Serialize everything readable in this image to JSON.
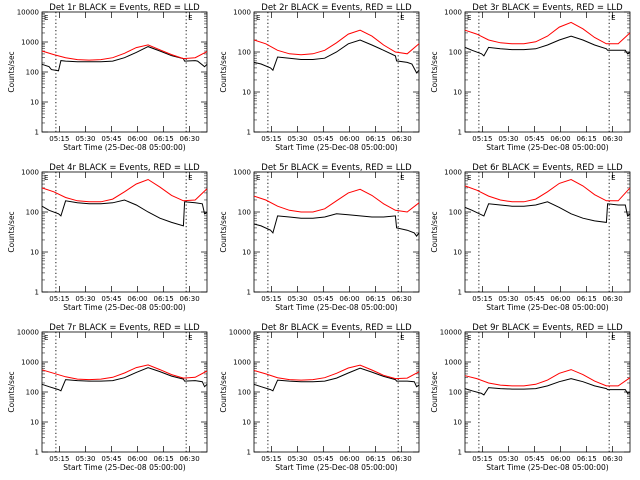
{
  "page": {
    "ylabel": "Counts/sec",
    "xlabel": "Start Time (25-Dec-08 05:00:00)",
    "xticks": [
      "05:15",
      "05:30",
      "05:45",
      "06:00",
      "06:15",
      "06:30"
    ],
    "yticks": [
      "1",
      "10",
      "100",
      "1000",
      "10000"
    ],
    "corner_mark": "E",
    "colors": {
      "events": "#000000",
      "lld": "#ff0000",
      "axes": "#000000"
    }
  },
  "chart_data": [
    {
      "type": "line",
      "title": "Det 1r BLACK = Events, RED = LLD",
      "xlabel": "Start Time (25-Dec-08 05:00:00)",
      "ylabel": "Counts/sec",
      "x_range_min": [
        5,
        40
      ],
      "ylim": [
        1,
        10000
      ],
      "yscale": "log",
      "markers_min": [
        13,
        65
      ],
      "series": [
        {
          "name": "Events",
          "color": "black",
          "x": [
            5,
            8,
            9,
            12,
            13,
            15,
            20,
            25,
            30,
            35,
            40,
            45,
            50,
            55,
            60,
            65,
            65.5,
            70,
            71,
            74,
            75
          ],
          "y": [
            180,
            150,
            120,
            110,
            240,
            230,
            220,
            220,
            220,
            230,
            300,
            450,
            700,
            500,
            350,
            280,
            230,
            240,
            230,
            150,
            180
          ]
        },
        {
          "name": "LLD",
          "color": "red",
          "x": [
            5,
            10,
            15,
            20,
            25,
            30,
            35,
            40,
            45,
            50,
            55,
            60,
            65,
            70,
            75
          ],
          "y": [
            500,
            380,
            300,
            260,
            250,
            260,
            300,
            420,
            650,
            800,
            550,
            380,
            280,
            300,
            480
          ]
        }
      ]
    },
    {
      "type": "line",
      "title": "Det 2r BLACK = Events, RED = LLD",
      "xlabel": "Start Time (25-Dec-08 05:00:00)",
      "ylabel": "Counts/sec",
      "ylim": [
        1,
        1000
      ],
      "yscale": "log",
      "markers_min": [
        13,
        65
      ],
      "series": [
        {
          "name": "Events",
          "color": "black",
          "x": [
            5,
            8,
            12,
            13,
            15,
            20,
            25,
            30,
            35,
            40,
            45,
            50,
            55,
            60,
            65,
            65.5,
            70,
            72,
            74,
            75
          ],
          "y": [
            55,
            50,
            40,
            35,
            75,
            70,
            65,
            65,
            70,
            100,
            160,
            200,
            150,
            110,
            80,
            60,
            55,
            50,
            30,
            35
          ]
        },
        {
          "name": "LLD",
          "color": "red",
          "x": [
            5,
            10,
            15,
            20,
            25,
            30,
            35,
            40,
            45,
            50,
            55,
            60,
            65,
            70,
            75
          ],
          "y": [
            200,
            160,
            110,
            90,
            85,
            90,
            110,
            170,
            280,
            350,
            250,
            150,
            100,
            90,
            160
          ]
        }
      ]
    },
    {
      "type": "line",
      "title": "Det 3r BLACK = Events, RED = LLD",
      "xlabel": "Start Time (25-Dec-08 05:00:00)",
      "ylabel": "Counts/sec",
      "ylim": [
        1,
        1000
      ],
      "yscale": "log",
      "markers_min": [
        13,
        65
      ],
      "series": [
        {
          "name": "Events",
          "color": "black",
          "x": [
            5,
            8,
            12,
            13,
            15,
            20,
            25,
            30,
            35,
            40,
            45,
            50,
            55,
            60,
            65,
            65.5,
            70,
            73,
            74,
            75
          ],
          "y": [
            130,
            110,
            90,
            80,
            130,
            120,
            115,
            115,
            120,
            150,
            200,
            250,
            200,
            150,
            120,
            110,
            110,
            110,
            90,
            100
          ]
        },
        {
          "name": "LLD",
          "color": "red",
          "x": [
            5,
            10,
            15,
            20,
            25,
            30,
            35,
            40,
            45,
            50,
            55,
            60,
            65,
            70,
            75
          ],
          "y": [
            350,
            280,
            200,
            170,
            160,
            160,
            180,
            250,
            420,
            550,
            380,
            230,
            160,
            160,
            300
          ]
        }
      ]
    },
    {
      "type": "line",
      "title": "Det 4r BLACK = Events, RED = LLD",
      "xlabel": "Start Time (25-Dec-08 05:00:00)",
      "ylabel": "Counts/sec",
      "ylim": [
        1,
        1000
      ],
      "yscale": "log",
      "markers_min": [
        13,
        65
      ],
      "series": [
        {
          "name": "Events",
          "color": "black",
          "x": [
            5,
            8,
            12,
            13,
            15,
            20,
            25,
            30,
            35,
            40,
            45,
            50,
            55,
            60,
            65,
            65.5,
            70,
            73,
            74,
            75
          ],
          "y": [
            140,
            110,
            90,
            80,
            190,
            170,
            160,
            160,
            170,
            200,
            150,
            100,
            70,
            55,
            45,
            180,
            170,
            160,
            90,
            100
          ]
        },
        {
          "name": "LLD",
          "color": "red",
          "x": [
            5,
            10,
            15,
            20,
            25,
            30,
            35,
            40,
            45,
            50,
            55,
            60,
            65,
            70,
            75
          ],
          "y": [
            400,
            320,
            230,
            190,
            180,
            180,
            210,
            320,
            500,
            650,
            420,
            260,
            190,
            200,
            380
          ]
        }
      ]
    },
    {
      "type": "line",
      "title": "Det 5r BLACK = Events, RED = LLD",
      "xlabel": "Start Time (25-Dec-08 05:00:00)",
      "ylabel": "Counts/sec",
      "ylim": [
        1,
        1000
      ],
      "yscale": "log",
      "markers_min": [
        13,
        65
      ],
      "series": [
        {
          "name": "Events",
          "color": "black",
          "x": [
            5,
            8,
            12,
            13,
            15,
            20,
            25,
            30,
            35,
            40,
            45,
            50,
            55,
            60,
            65,
            65.5,
            70,
            73,
            74,
            75
          ],
          "y": [
            50,
            45,
            35,
            30,
            80,
            75,
            70,
            70,
            75,
            90,
            85,
            80,
            75,
            75,
            80,
            40,
            35,
            30,
            25,
            30
          ]
        },
        {
          "name": "LLD",
          "color": "red",
          "x": [
            5,
            10,
            15,
            20,
            25,
            30,
            35,
            40,
            45,
            50,
            55,
            60,
            65,
            70,
            75
          ],
          "y": [
            250,
            200,
            140,
            110,
            100,
            100,
            120,
            190,
            300,
            370,
            260,
            160,
            110,
            100,
            170
          ]
        }
      ]
    },
    {
      "type": "line",
      "title": "Det 6r BLACK = Events, RED = LLD",
      "xlabel": "Start Time (25-Dec-08 05:00:00)",
      "ylabel": "Counts/sec",
      "ylim": [
        1,
        1000
      ],
      "yscale": "log",
      "markers_min": [
        13,
        65
      ],
      "series": [
        {
          "name": "Events",
          "color": "black",
          "x": [
            5,
            8,
            12,
            13,
            15,
            20,
            25,
            30,
            35,
            40,
            45,
            50,
            55,
            60,
            65,
            65.5,
            70,
            73,
            74,
            75
          ],
          "y": [
            130,
            110,
            85,
            80,
            160,
            150,
            140,
            140,
            150,
            180,
            130,
            90,
            70,
            60,
            55,
            160,
            150,
            150,
            80,
            90
          ]
        },
        {
          "name": "LLD",
          "color": "red",
          "x": [
            5,
            10,
            15,
            20,
            25,
            30,
            35,
            40,
            45,
            50,
            55,
            60,
            65,
            70,
            75
          ],
          "y": [
            450,
            350,
            250,
            200,
            180,
            180,
            210,
            320,
            520,
            650,
            450,
            270,
            190,
            190,
            400
          ]
        }
      ]
    },
    {
      "type": "line",
      "title": "Det 7r BLACK = Events, RED = LLD",
      "xlabel": "Start Time (25-Dec-08 05:00:00)",
      "ylabel": "Counts/sec",
      "ylim": [
        1,
        10000
      ],
      "yscale": "log",
      "markers_min": [
        13,
        65
      ],
      "series": [
        {
          "name": "Events",
          "color": "black",
          "x": [
            5,
            8,
            12,
            13,
            15,
            20,
            25,
            30,
            35,
            40,
            45,
            50,
            55,
            60,
            65,
            65.5,
            70,
            73,
            74,
            75
          ],
          "y": [
            180,
            150,
            120,
            110,
            260,
            240,
            230,
            230,
            240,
            300,
            450,
            650,
            480,
            340,
            270,
            230,
            240,
            220,
            150,
            180
          ]
        },
        {
          "name": "LLD",
          "color": "red",
          "x": [
            5,
            10,
            15,
            20,
            25,
            30,
            35,
            40,
            45,
            50,
            55,
            60,
            65,
            70,
            75
          ],
          "y": [
            550,
            420,
            320,
            270,
            260,
            270,
            310,
            430,
            650,
            800,
            560,
            380,
            290,
            310,
            500
          ]
        }
      ]
    },
    {
      "type": "line",
      "title": "Det 8r BLACK = Events, RED = LLD",
      "xlabel": "Start Time (25-Dec-08 05:00:00)",
      "ylabel": "Counts/sec",
      "ylim": [
        1,
        10000
      ],
      "yscale": "log",
      "markers_min": [
        13,
        65
      ],
      "series": [
        {
          "name": "Events",
          "color": "black",
          "x": [
            5,
            8,
            12,
            13,
            15,
            20,
            25,
            30,
            35,
            40,
            45,
            50,
            55,
            60,
            65,
            65.5,
            70,
            73,
            74,
            75
          ],
          "y": [
            180,
            150,
            120,
            110,
            250,
            230,
            220,
            220,
            230,
            290,
            430,
            620,
            460,
            330,
            260,
            230,
            230,
            220,
            150,
            170
          ]
        },
        {
          "name": "LLD",
          "color": "red",
          "x": [
            5,
            10,
            15,
            20,
            25,
            30,
            35,
            40,
            45,
            50,
            55,
            60,
            65,
            70,
            75
          ],
          "y": [
            520,
            400,
            300,
            260,
            250,
            260,
            300,
            420,
            630,
            780,
            540,
            360,
            280,
            290,
            470
          ]
        }
      ]
    },
    {
      "type": "line",
      "title": "Det 9r BLACK = Events, RED = LLD",
      "xlabel": "Start Time (25-Dec-08 05:00:00)",
      "ylabel": "Counts/sec",
      "ylim": [
        1,
        10000
      ],
      "yscale": "log",
      "markers_min": [
        13,
        65
      ],
      "series": [
        {
          "name": "Events",
          "color": "black",
          "x": [
            5,
            8,
            12,
            13,
            15,
            20,
            25,
            30,
            35,
            40,
            45,
            50,
            55,
            60,
            65,
            65.5,
            70,
            73,
            74,
            75
          ],
          "y": [
            130,
            110,
            90,
            80,
            140,
            130,
            125,
            125,
            130,
            160,
            220,
            280,
            220,
            160,
            130,
            120,
            120,
            120,
            90,
            100
          ]
        },
        {
          "name": "LLD",
          "color": "red",
          "x": [
            5,
            10,
            15,
            20,
            25,
            30,
            35,
            40,
            45,
            50,
            55,
            60,
            65,
            70,
            75
          ],
          "y": [
            350,
            280,
            200,
            170,
            160,
            160,
            180,
            250,
            420,
            560,
            380,
            230,
            160,
            160,
            300
          ]
        }
      ]
    }
  ]
}
